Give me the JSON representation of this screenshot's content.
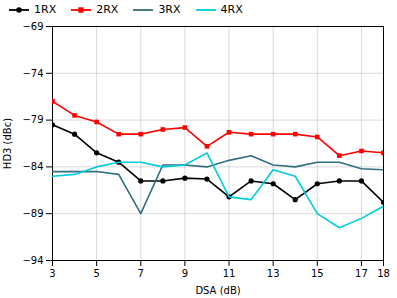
{
  "chart_data": {
    "type": "line",
    "x": [
      3,
      4,
      5,
      6,
      7,
      8,
      9,
      10,
      11,
      12,
      13,
      14,
      15,
      16,
      17,
      18
    ],
    "series": [
      {
        "name": "1RX",
        "color": "#000000",
        "marker": "circle",
        "values": [
          -79.5,
          -80.5,
          -82.5,
          -83.5,
          -85.5,
          -85.5,
          -85.2,
          -85.3,
          -87.2,
          -85.5,
          -85.8,
          -87.5,
          -85.8,
          -85.5,
          -85.5,
          -87.8
        ]
      },
      {
        "name": "2RX",
        "color": "#ff0000",
        "marker": "square",
        "values": [
          -77.0,
          -78.5,
          -79.2,
          -80.5,
          -80.5,
          -80.0,
          -79.8,
          -81.8,
          -80.3,
          -80.5,
          -80.5,
          -80.5,
          -80.8,
          -82.8,
          -82.3,
          -82.5
        ]
      },
      {
        "name": "3RX",
        "color": "#2f6f7f",
        "values": [
          -84.5,
          -84.5,
          -84.5,
          -84.8,
          -89.0,
          -83.8,
          -83.8,
          -84.0,
          -83.3,
          -82.8,
          -83.8,
          -84.0,
          -83.5,
          -83.5,
          -84.2,
          -84.3
        ]
      },
      {
        "name": "4RX",
        "color": "#00ccdd",
        "values": [
          -85.0,
          -84.8,
          -84.0,
          -83.5,
          -83.5,
          -84.0,
          -83.8,
          -82.5,
          -87.2,
          -87.5,
          -84.3,
          -85.0,
          -89.0,
          -90.5,
          -89.5,
          -88.2
        ]
      }
    ],
    "xlabel": "DSA (dB)",
    "ylabel": "HD3 (dBc)",
    "xlim": [
      3,
      18
    ],
    "ylim": [
      -94,
      -69
    ],
    "xticks": [
      3,
      5,
      7,
      9,
      11,
      13,
      15,
      17,
      18
    ],
    "yticks": [
      -69,
      -74,
      -79,
      -84,
      -89,
      -94
    ],
    "grid": true,
    "legend": "upper left"
  }
}
